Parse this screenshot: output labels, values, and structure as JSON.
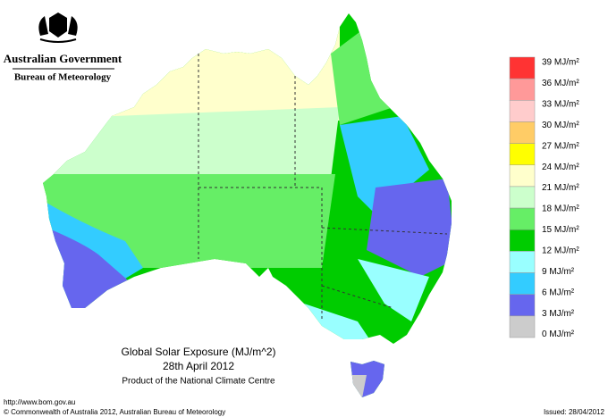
{
  "header": {
    "government": "Australian Government",
    "bureau": "Bureau of Meteorology"
  },
  "map": {
    "title": "Global Solar Exposure (MJ/m^2)",
    "date": "28th April 2012",
    "product": "Product of the National Climate Centre"
  },
  "legend": {
    "labels": [
      "39 MJ/m²",
      "36 MJ/m²",
      "33 MJ/m²",
      "30 MJ/m²",
      "27 MJ/m²",
      "24 MJ/m²",
      "21 MJ/m²",
      "18 MJ/m²",
      "15 MJ/m²",
      "12 MJ/m²",
      "9 MJ/m²",
      "6 MJ/m²",
      "3 MJ/m²",
      "0 MJ/m²"
    ],
    "colors": [
      "#ff3333",
      "#ff9999",
      "#ffcccc",
      "#ffcc66",
      "#ffff00",
      "#ffffcc",
      "#ccffcc",
      "#66ee66",
      "#00cc00",
      "#99ffff",
      "#33ccff",
      "#6666ee",
      "#cccccc"
    ]
  },
  "footer": {
    "url": "http://www.bom.gov.au",
    "copyright": "© Commonwealth of Australia 2012, Australian Bureau of Meteorology",
    "issued": "Issued: 28/04/2012"
  }
}
